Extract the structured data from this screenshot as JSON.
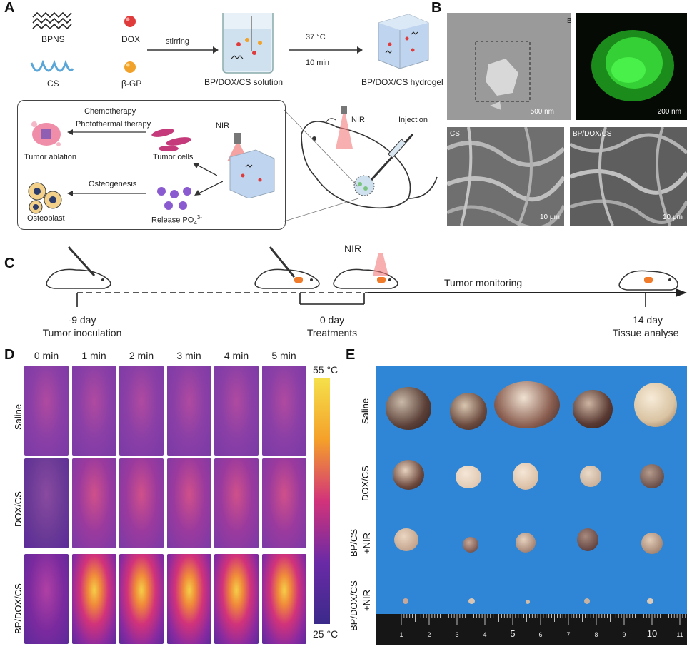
{
  "panels": {
    "a": "A",
    "b": "B",
    "c": "C",
    "d": "D",
    "e": "E"
  },
  "panel_a": {
    "bpns": "BPNS",
    "dox": "DOX",
    "cs": "CS",
    "bgp": "β-GP",
    "stirring": "stirring",
    "solution": "BP/DOX/CS solution",
    "temp": "37 °C",
    "time": "10 min",
    "hydrogel": "BP/DOX/CS hydrogel",
    "chemo": "Chemotherapy",
    "ptt": "Photothermal therapy",
    "tumor_ablation": "Tumor ablation",
    "tumor_cells": "Tumor cells",
    "nir_box": "NIR",
    "osteogenesis": "Osteogenesis",
    "osteoblast": "Osteoblast",
    "release": "Release PO",
    "release_sub": "4",
    "release_sup": "3-",
    "nir_mouse": "NIR",
    "injection": "Injection"
  },
  "panel_b": {
    "scale1": "500 nm",
    "scale2": "200 nm",
    "cs": "CS",
    "scale3": "10 μm",
    "bpdoxcs": "BP/DOX/CS",
    "scale4": "10 μm",
    "corner": "B"
  },
  "panel_c": {
    "nir": "NIR",
    "monitoring": "Tumor monitoring",
    "d1": "-9 day",
    "d1b": "Tumor inoculation",
    "d2": "0 day",
    "d2b": "Treatments",
    "d3": "14 day",
    "d3b": "Tissue analyse"
  },
  "panel_d": {
    "times": [
      "0 min",
      "1 min",
      "2 min",
      "3 min",
      "4 min",
      "5 min"
    ],
    "rows": [
      "Saline",
      "DOX/CS",
      "BP/DOX/CS"
    ],
    "scale_max": "55 °C",
    "scale_min": "25 °C",
    "colors": {
      "cold": "#5b2a9a",
      "mid": "#d2337a",
      "hot": "#f5d048"
    }
  },
  "panel_e": {
    "rows": [
      "Saline",
      "DOX/CS",
      "BP/CS\n+NIR",
      "BP/DOX/CS\n+NIR"
    ],
    "row1": "Saline",
    "row2": "DOX/CS",
    "row3a": "BP/CS",
    "row3b": "+NIR",
    "row4a": "BP/DOX/CS",
    "row4b": "+NIR",
    "ruler": [
      "1",
      "2",
      "3",
      "4",
      "5",
      "6",
      "7",
      "8",
      "9",
      "10",
      "11"
    ],
    "background": "#2f86d6"
  }
}
